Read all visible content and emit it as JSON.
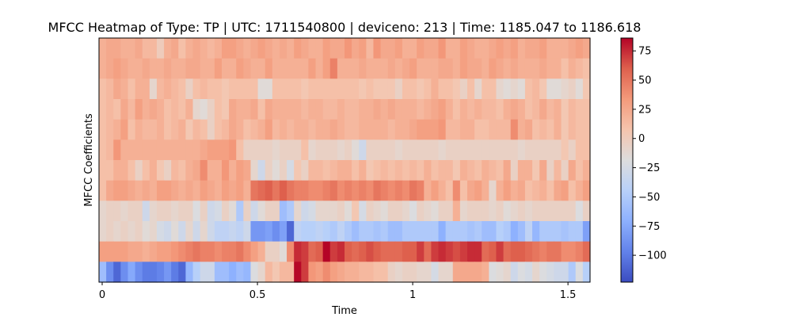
{
  "chart_data": {
    "type": "heatmap",
    "title": "MFCC Heatmap of Type: TP | UTC: 1711540800 | deviceno: 213 | Time: 1185.047 to 1186.618",
    "xlabel": "Time",
    "ylabel": "MFCC Coefficients",
    "xlim": [
      0,
      1.571
    ],
    "x_ticks": [
      0,
      0.5,
      1,
      1.5
    ],
    "x_tick_labels": [
      "0",
      "0.5",
      "1",
      "1.5"
    ],
    "colormap": "coolwarm",
    "color_range": [
      -123,
      86
    ],
    "colorbar_ticks": [
      75,
      50,
      25,
      0,
      -25,
      -50,
      -75,
      -100
    ],
    "colorbar_tick_labels": [
      "75",
      "50",
      "25",
      "0",
      "−25",
      "−50",
      "−75",
      "−100"
    ],
    "n_rows": 12,
    "n_cols": 68,
    "row_order": "top_to_bottom",
    "rows": [
      [
        20,
        25,
        25,
        20,
        20,
        25,
        15,
        15,
        0,
        20,
        25,
        10,
        20,
        25,
        20,
        15,
        20,
        30,
        30,
        25,
        20,
        25,
        30,
        25,
        20,
        25,
        20,
        30,
        25,
        20,
        20,
        30,
        25,
        25,
        35,
        25,
        30,
        15,
        35,
        25,
        25,
        30,
        20,
        20,
        30,
        25,
        25,
        35,
        20,
        20,
        30,
        25,
        20,
        20,
        25,
        30,
        25,
        30,
        20,
        25,
        25,
        30,
        20,
        20,
        20,
        25,
        30,
        25
      ],
      [
        20,
        25,
        30,
        25,
        20,
        20,
        25,
        20,
        20,
        25,
        20,
        20,
        25,
        25,
        20,
        20,
        30,
        20,
        20,
        30,
        25,
        20,
        20,
        30,
        20,
        20,
        20,
        20,
        20,
        30,
        20,
        30,
        45,
        20,
        20,
        20,
        25,
        20,
        20,
        20,
        25,
        20,
        25,
        30,
        20,
        20,
        20,
        25,
        25,
        20,
        30,
        25,
        25,
        20,
        30,
        25,
        20,
        25,
        20,
        20,
        20,
        25,
        20,
        20,
        10,
        20,
        15,
        10
      ],
      [
        10,
        15,
        25,
        20,
        10,
        20,
        20,
        -10,
        15,
        20,
        15,
        10,
        -5,
        10,
        15,
        10,
        10,
        5,
        10,
        10,
        10,
        10,
        -15,
        -15,
        10,
        10,
        10,
        10,
        5,
        10,
        10,
        10,
        10,
        10,
        10,
        10,
        5,
        10,
        5,
        5,
        5,
        -5,
        10,
        10,
        5,
        10,
        20,
        10,
        10,
        5,
        -5,
        10,
        -10,
        10,
        10,
        -10,
        -15,
        -10,
        -15,
        10,
        15,
        5,
        -15,
        -15,
        -10,
        -5,
        -15,
        5
      ],
      [
        10,
        15,
        10,
        25,
        15,
        30,
        20,
        25,
        20,
        10,
        15,
        10,
        20,
        -10,
        -15,
        -5,
        10,
        5,
        25,
        20,
        20,
        25,
        10,
        25,
        20,
        20,
        20,
        20,
        15,
        20,
        20,
        15,
        15,
        20,
        15,
        15,
        20,
        20,
        25,
        20,
        25,
        20,
        20,
        20,
        15,
        20,
        25,
        30,
        20,
        10,
        20,
        15,
        20,
        15,
        15,
        10,
        20,
        25,
        20,
        10,
        15,
        25,
        15,
        20,
        5,
        15,
        10,
        10
      ],
      [
        10,
        15,
        20,
        30,
        10,
        20,
        15,
        15,
        20,
        10,
        15,
        20,
        5,
        15,
        10,
        -5,
        10,
        15,
        25,
        20,
        10,
        15,
        20,
        30,
        15,
        20,
        15,
        20,
        20,
        15,
        20,
        20,
        25,
        20,
        15,
        15,
        20,
        20,
        20,
        20,
        15,
        20,
        20,
        25,
        30,
        30,
        30,
        35,
        15,
        15,
        20,
        20,
        10,
        10,
        15,
        15,
        15,
        40,
        20,
        25,
        10,
        15,
        10,
        20,
        5,
        15,
        10,
        10
      ],
      [
        10,
        15,
        35,
        20,
        20,
        20,
        20,
        20,
        20,
        20,
        20,
        20,
        20,
        20,
        25,
        30,
        30,
        30,
        35,
        10,
        -5,
        -5,
        -5,
        -5,
        -10,
        -5,
        -5,
        -5,
        10,
        -10,
        -5,
        -5,
        -5,
        -10,
        -5,
        -15,
        -30,
        -5,
        -5,
        -5,
        -5,
        -10,
        -5,
        -5,
        -5,
        -5,
        -5,
        -10,
        -5,
        -5,
        -5,
        -5,
        -5,
        -5,
        -5,
        -5,
        -5,
        -5,
        -10,
        -5,
        -5,
        -5,
        -5,
        -5,
        5,
        -5,
        10,
        10
      ],
      [
        10,
        10,
        20,
        20,
        10,
        -5,
        10,
        20,
        5,
        -5,
        15,
        10,
        20,
        25,
        40,
        20,
        20,
        35,
        20,
        30,
        25,
        -10,
        -30,
        -5,
        -15,
        -5,
        -25,
        5,
        -5,
        15,
        15,
        10,
        15,
        20,
        20,
        10,
        20,
        5,
        10,
        15,
        10,
        15,
        10,
        15,
        10,
        20,
        10,
        15,
        15,
        5,
        20,
        15,
        10,
        20,
        15,
        10,
        25,
        -5,
        20,
        20,
        5,
        25,
        -5,
        15,
        -5,
        25,
        10,
        20
      ],
      [
        10,
        25,
        30,
        30,
        25,
        20,
        25,
        20,
        30,
        30,
        25,
        20,
        25,
        20,
        30,
        25,
        20,
        30,
        25,
        30,
        20,
        50,
        55,
        60,
        50,
        60,
        50,
        45,
        45,
        40,
        40,
        45,
        50,
        40,
        45,
        40,
        45,
        40,
        50,
        45,
        40,
        45,
        40,
        50,
        45,
        20,
        30,
        20,
        10,
        40,
        10,
        25,
        30,
        20,
        -10,
        20,
        30,
        20,
        25,
        10,
        15,
        20,
        10,
        25,
        30,
        10,
        20,
        30
      ],
      [
        -10,
        -5,
        -5,
        -10,
        -5,
        -5,
        -30,
        -10,
        -5,
        -5,
        -10,
        -5,
        -5,
        -20,
        -5,
        -30,
        -25,
        -5,
        -15,
        -50,
        -5,
        -30,
        -15,
        -5,
        -5,
        -60,
        -50,
        -10,
        -30,
        -25,
        -10,
        -10,
        -10,
        -5,
        -15,
        5,
        -25,
        -5,
        -10,
        -15,
        -5,
        -5,
        -10,
        -20,
        -5,
        -10,
        -15,
        -5,
        -5,
        20,
        -10,
        -5,
        -5,
        -5,
        -10,
        -5,
        -15,
        -10,
        -5,
        -10,
        -5,
        -5,
        -5,
        -5,
        -5,
        -5,
        -20,
        -5
      ],
      [
        -10,
        -5,
        -10,
        -5,
        -10,
        -5,
        -15,
        -10,
        -25,
        -30,
        -15,
        -30,
        -10,
        -30,
        -10,
        -30,
        -40,
        -40,
        -35,
        -40,
        -30,
        -85,
        -85,
        -80,
        -90,
        -80,
        -110,
        -40,
        -45,
        -45,
        -40,
        -45,
        -50,
        -40,
        -50,
        -60,
        -50,
        -50,
        -55,
        -50,
        -60,
        -60,
        -50,
        -50,
        -50,
        -50,
        -50,
        -70,
        -50,
        -50,
        -50,
        -55,
        -50,
        -60,
        -60,
        -45,
        -50,
        -70,
        -60,
        -40,
        -65,
        -50,
        -50,
        -50,
        -55,
        -50,
        -50,
        -80
      ],
      [
        30,
        30,
        30,
        30,
        25,
        25,
        20,
        25,
        30,
        30,
        35,
        40,
        45,
        50,
        45,
        45,
        40,
        45,
        45,
        50,
        40,
        30,
        20,
        -5,
        -5,
        -15,
        40,
        75,
        70,
        55,
        60,
        90,
        70,
        75,
        60,
        55,
        60,
        65,
        60,
        55,
        55,
        55,
        60,
        60,
        70,
        55,
        70,
        75,
        70,
        65,
        70,
        75,
        75,
        55,
        60,
        70,
        55,
        60,
        60,
        55,
        50,
        45,
        50,
        50,
        40,
        40,
        45,
        55
      ],
      [
        -60,
        -90,
        -110,
        -90,
        -75,
        -90,
        -100,
        -100,
        -95,
        -85,
        -100,
        -110,
        -65,
        -45,
        -30,
        -30,
        -60,
        -60,
        -70,
        -60,
        -65,
        -20,
        -10,
        15,
        5,
        15,
        15,
        85,
        70,
        35,
        30,
        40,
        30,
        25,
        20,
        20,
        15,
        15,
        10,
        10,
        -5,
        -10,
        -5,
        -5,
        -10,
        -10,
        -25,
        -10,
        -10,
        25,
        25,
        25,
        25,
        20,
        -20,
        -15,
        -10,
        -30,
        -20,
        -25,
        -10,
        -20,
        -25,
        -30,
        -30,
        -50,
        -20,
        -45
      ]
    ]
  }
}
